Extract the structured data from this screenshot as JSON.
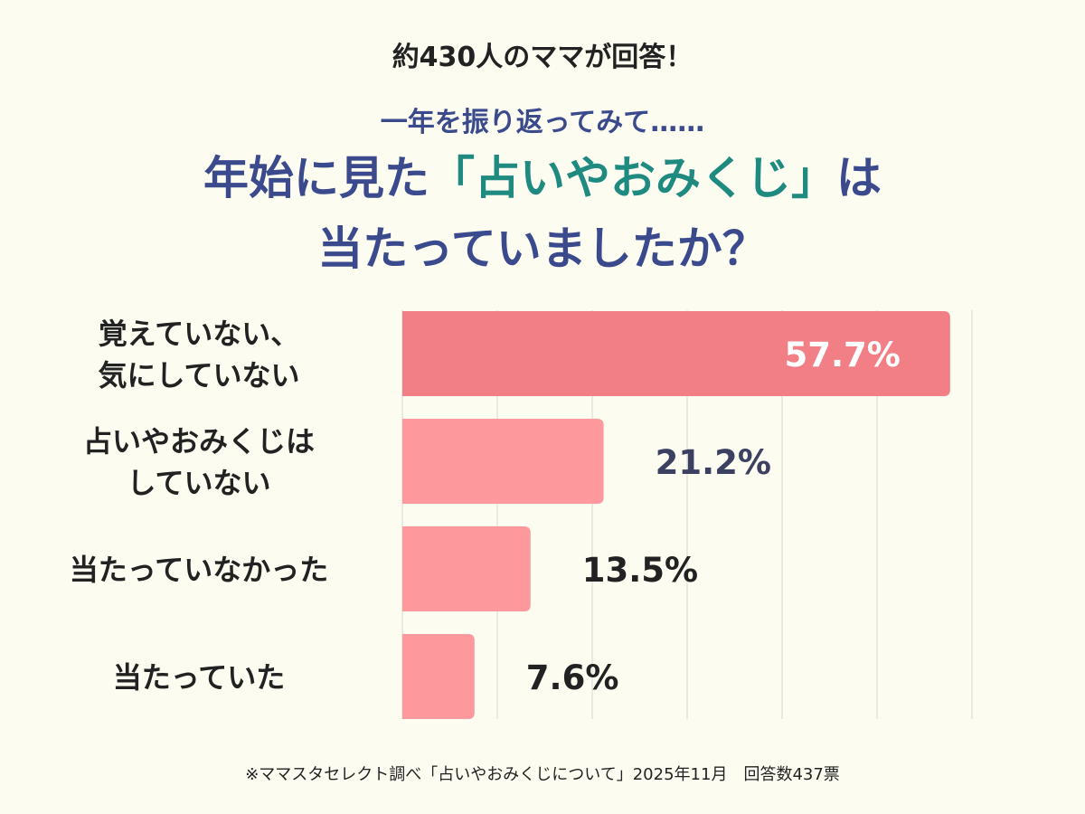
{
  "header": {
    "top": "約430人のママが回答！",
    "sub": "一年を振り返ってみて……"
  },
  "title": {
    "pre": "年始に見た",
    "accent": "「占いやおみくじ」",
    "post": "は",
    "line2": "当たっていましたか？"
  },
  "colors": {
    "background": "#fdfcf1",
    "title": "#3a4a8c",
    "accent": "#1f8a80",
    "bar_top": "#f37f86",
    "bar_other": "#fd989d",
    "label_dark": "#222222",
    "label_navy": "#3d4161",
    "grid": "#d8d8d8"
  },
  "chart_data": {
    "type": "bar",
    "orientation": "horizontal",
    "categories": [
      [
        "覚えていない、",
        "気にしていない"
      ],
      [
        "占いやおみくじは",
        "していない"
      ],
      [
        "当たっていなかった"
      ],
      [
        "当たっていた"
      ]
    ],
    "values": [
      57.7,
      21.2,
      13.5,
      7.6
    ],
    "value_labels": [
      "57.7%",
      "21.2%",
      "13.5%",
      "7.6%"
    ],
    "xlim": [
      0,
      60
    ],
    "grid": true
  },
  "footer": "※ママスタセレクト調べ「占いやおみくじについて」2025年11月　回答数437票"
}
